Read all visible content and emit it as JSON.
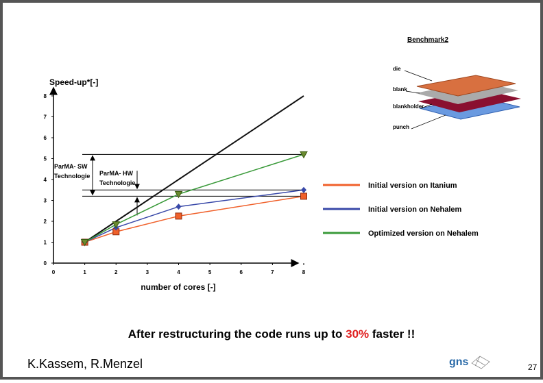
{
  "chart_data": {
    "type": "line",
    "y_label": "Speed-up*[-]",
    "x_label": "number of cores [-]",
    "x": [
      1,
      2,
      4,
      8
    ],
    "xlim": [
      0,
      8
    ],
    "xticks": [
      0,
      1,
      2,
      3,
      4,
      5,
      6,
      7,
      8
    ],
    "ylim": [
      0,
      8
    ],
    "yticks": [
      0,
      1,
      2,
      3,
      4,
      5,
      6,
      7,
      8
    ],
    "series": [
      {
        "color": "#111111",
        "values": [
          1,
          2,
          4,
          8
        ]
      },
      {
        "name": "Initial version on Itanium",
        "color": "#f0602a",
        "marker": "square",
        "values": [
          1,
          1.5,
          2.25,
          3.2
        ]
      },
      {
        "name": "Initial version on Nehalem",
        "color": "#3848a8",
        "marker": "diamond",
        "values": [
          1,
          1.7,
          2.7,
          3.5
        ]
      },
      {
        "name": "Optimized version on Nehalem",
        "color": "#3a9a3a",
        "marker": "triangle",
        "values": [
          1,
          1.85,
          3.3,
          5.2
        ]
      }
    ],
    "annotations": {
      "sw": [
        "ParMA- SW",
        "Technologie"
      ],
      "hw": [
        "ParMA- HW",
        "Technologie"
      ]
    }
  },
  "figure": {
    "title": "Benchmark2",
    "labels": [
      "die",
      "blank",
      "blankholder",
      "punch"
    ]
  },
  "headline": [
    "After restructuring the code runs up to ",
    "30%",
    " faster !!"
  ],
  "footer": {
    "authors": "K.Kassem, R.Menzel",
    "logo": "gns",
    "page": "27"
  }
}
